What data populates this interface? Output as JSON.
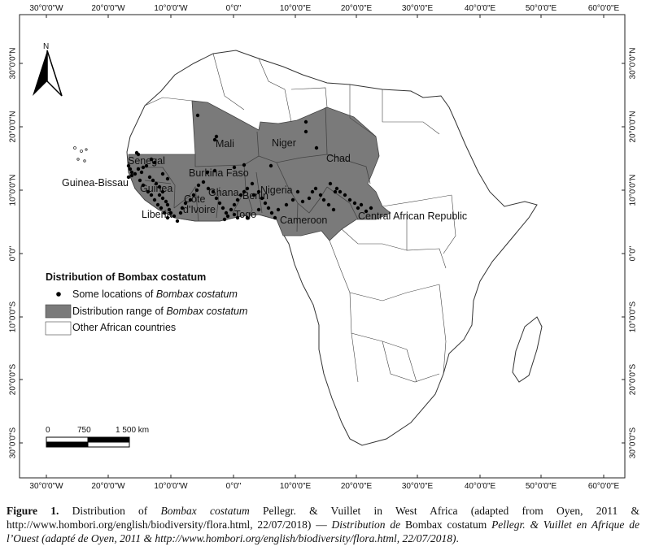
{
  "map": {
    "top_ticks": [
      "30°0'0\"W",
      "20°0'0\"W",
      "10°0'0\"W",
      "0°0\"",
      "10°0'0\"E",
      "20°0'0\"E",
      "30°0'0\"E",
      "40°0'0\"E",
      "50°0'0\"E",
      "60°0'0\"E"
    ],
    "bottom_ticks": [
      "30°0'0\"W",
      "20°0'0\"W",
      "10°0'0\"W",
      "0°0\"",
      "10°0'0\"E",
      "20°0'0\"E",
      "30°0'0\"E",
      "40°0'0\"E",
      "50°0'0\"E",
      "60°0'0\"E"
    ],
    "left_ticks": [
      "30°0'0\"N",
      "20°0'0\"N",
      "10°0'0\"N",
      "0°0\"",
      "10°0'0\"S",
      "20°0'0\"S",
      "30°0'0\"S"
    ],
    "right_ticks": [
      "30°0'0\"N",
      "20°0'0\"N",
      "10°0'0\"N",
      "0°0\"",
      "10°0'0\"S",
      "20°0'0\"S",
      "30°0'0\"S"
    ],
    "north_label": "N",
    "countries": {
      "mali": "Mali",
      "niger": "Niger",
      "chad": "Chad",
      "senegal": "Senegal",
      "guinea_bissau": "Guinea-Bissau",
      "guinea": "Guinea",
      "burkina_faso": "Burkina Faso",
      "ghana": "Ghana",
      "benin": "Benin",
      "nigeria": "Nigeria",
      "cote_line1": "Côte",
      "cote_line2": "d'Ivoire",
      "liberia": "Liberia",
      "togo": "Togo",
      "cameroon": "Cameroon",
      "car": "Central African Republic"
    },
    "colors": {
      "range_fill": "#7a7a7a",
      "land_fill": "#ffffff",
      "border": "#444444"
    }
  },
  "legend": {
    "title": "Distribution of Bombax costatum",
    "item1_prefix": "Some locations of ",
    "item1_species": "Bombax costatum",
    "item2_prefix": "Distribution range of ",
    "item2_species": "Bombax costatum",
    "item3": "Other African countries"
  },
  "scale_bar": {
    "label_0": "0",
    "label_750": "750",
    "label_1500": "1 500 km"
  },
  "caption": {
    "fig": "Figure 1.",
    "t1": " Distribution of ",
    "sp1": "Bombax costatum",
    "t2": " Pellegr. & Vuillet in West Africa (adapted from Oyen, 2011 & http://www.hombori.org/english/biodiversity/flora.html, 22/07/2018) — ",
    "fr1": "Distribution de ",
    "sp2": "Bombax costatum",
    "fr2": " Pellegr. & Vuillet en Afrique de l’Ouest (adapté de Oyen, 2011 & http://www.hombori.org/english/biodiversity/flora.html, 22/07/2018)",
    "end": "."
  }
}
